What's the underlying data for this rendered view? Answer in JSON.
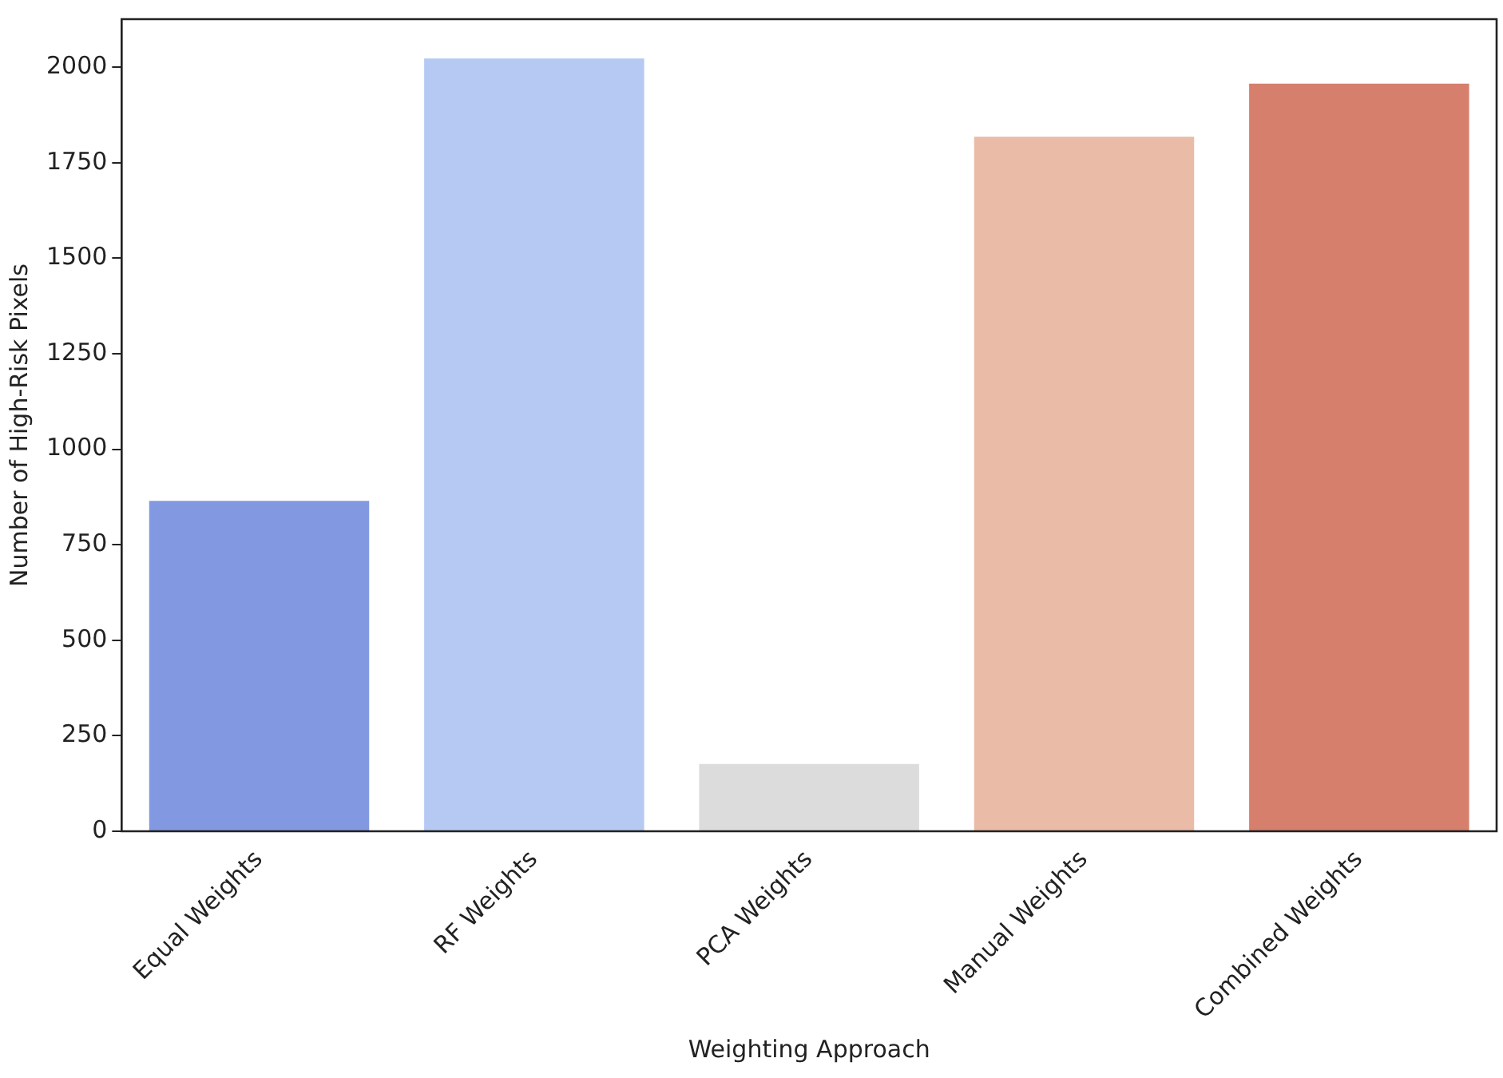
{
  "chart_data": {
    "type": "bar",
    "xlabel": "Weighting Approach",
    "ylabel": "Number of High-Risk Pixels",
    "categories": [
      "Equal Weights",
      "RF Weights",
      "PCA Weights",
      "Manual Weights",
      "Combined Weights"
    ],
    "values": [
      865,
      2023,
      176,
      1818,
      1957
    ],
    "colors": [
      "#8299e1",
      "#b5c9f2",
      "#dcdcdc",
      "#eabba6",
      "#d57f6c"
    ],
    "ylim": [
      0,
      2126
    ],
    "yticks": [
      0,
      250,
      500,
      750,
      1000,
      1250,
      1500,
      1750,
      2000
    ],
    "grid": false,
    "legend": false
  }
}
